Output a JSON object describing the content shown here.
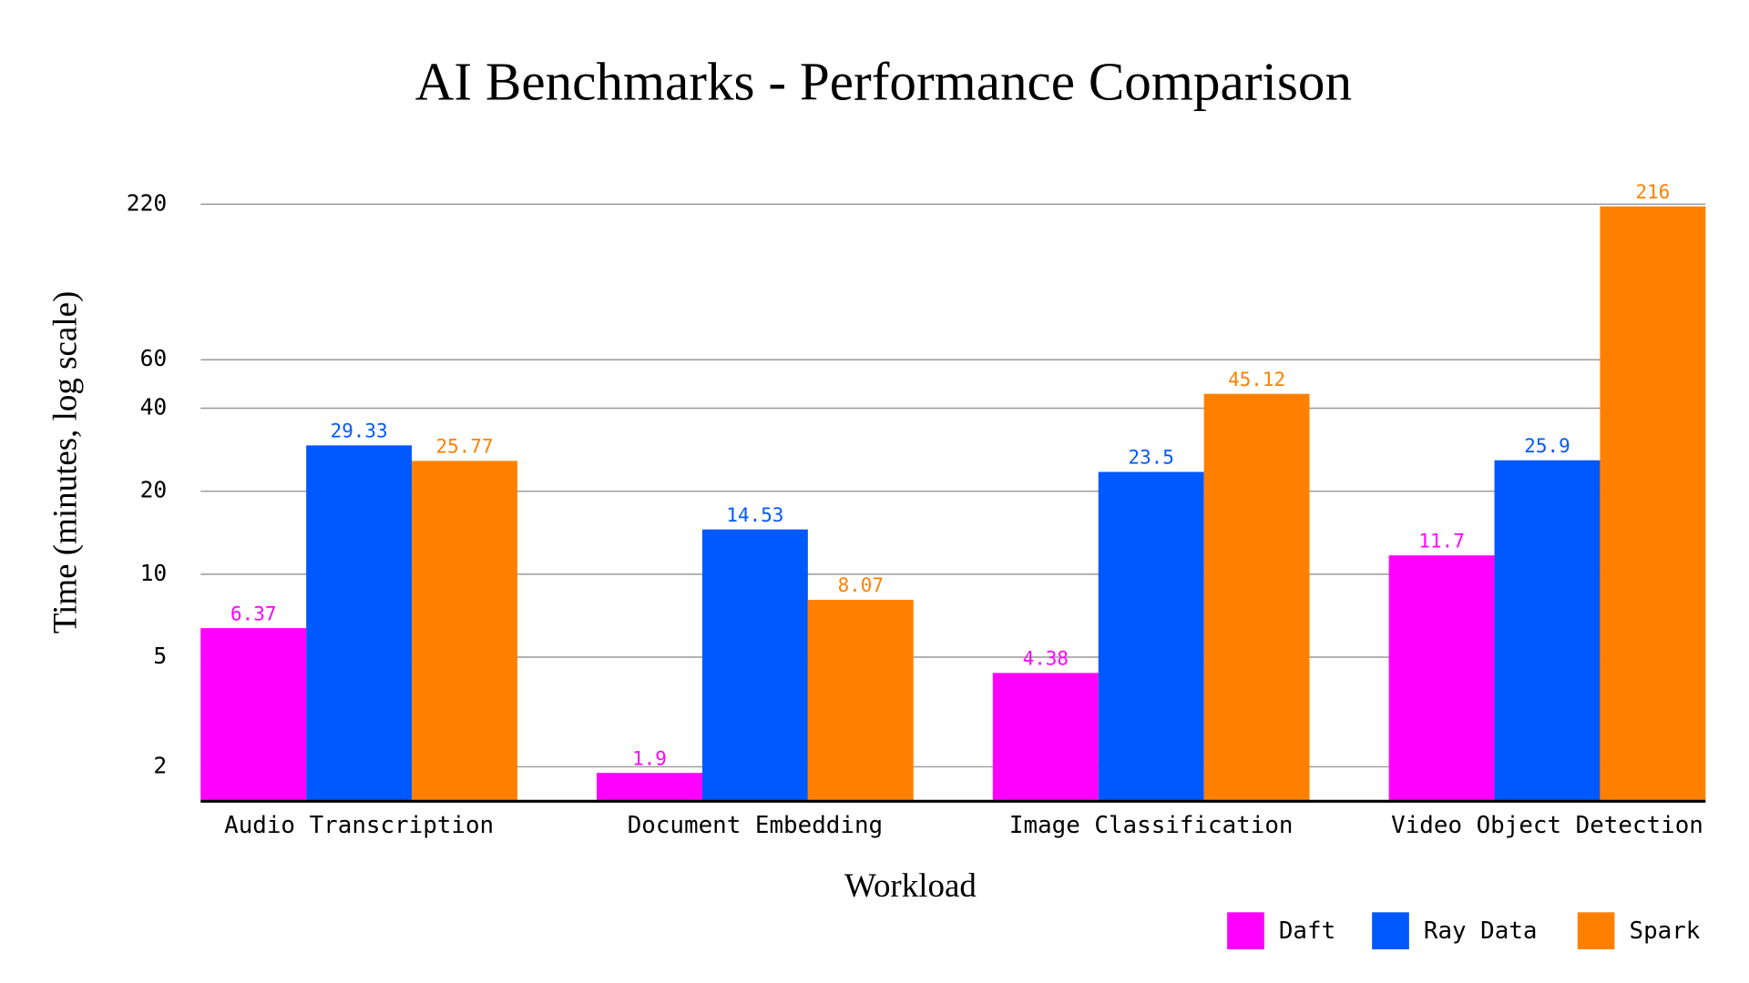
{
  "chart_data": {
    "type": "bar",
    "title": "AI Benchmarks - Performance Comparison",
    "x_label": "Workload",
    "y_label": "Time (minutes, log scale)",
    "categories": [
      "Audio Transcription",
      "Document Embedding",
      "Image Classification",
      "Video Object Detection"
    ],
    "series": [
      {
        "name": "Daft",
        "color": "#ff00ff",
        "values": [
          6.37,
          1.9,
          4.38,
          11.7
        ]
      },
      {
        "name": "Ray Data",
        "color": "#0058ff",
        "values": [
          29.33,
          14.53,
          23.5,
          25.9
        ]
      },
      {
        "name": "Spark",
        "color": "#ff8000",
        "values": [
          25.77,
          8.07,
          45.12,
          216
        ]
      }
    ],
    "yscale": "log",
    "ylim": [
      1.5,
      220
    ],
    "yticks": [
      2,
      5,
      10,
      20,
      40,
      60,
      220
    ],
    "grid": true,
    "legend": "bottom-right"
  }
}
